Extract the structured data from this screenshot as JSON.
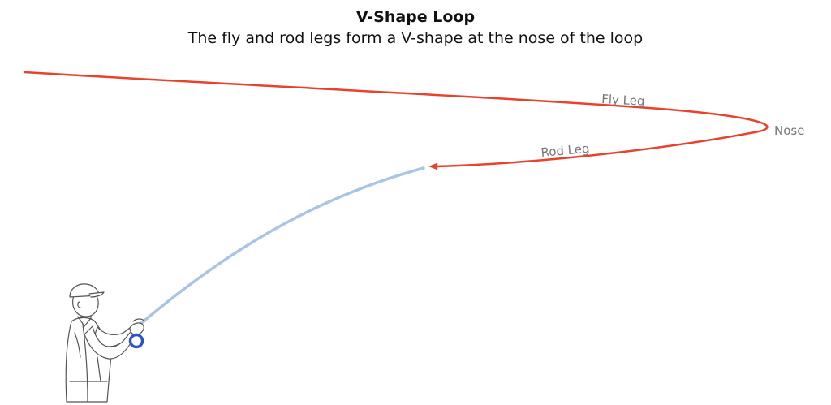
{
  "title": "V-Shape Loop",
  "subtitle": "The fly and rod legs form a V-shape at the nose of the loop",
  "labels": {
    "fly_leg": "Fly Leg",
    "rod_leg": "Rod Leg",
    "nose": "Nose"
  },
  "colors": {
    "line": "#e8412c",
    "rod": "#a9c4e4",
    "reel": "#2a52c9",
    "figure_outline": "#555555",
    "label": "#777777"
  },
  "icons": {
    "figure": "fly-fisherman-illustration",
    "reel": "reel-icon"
  }
}
